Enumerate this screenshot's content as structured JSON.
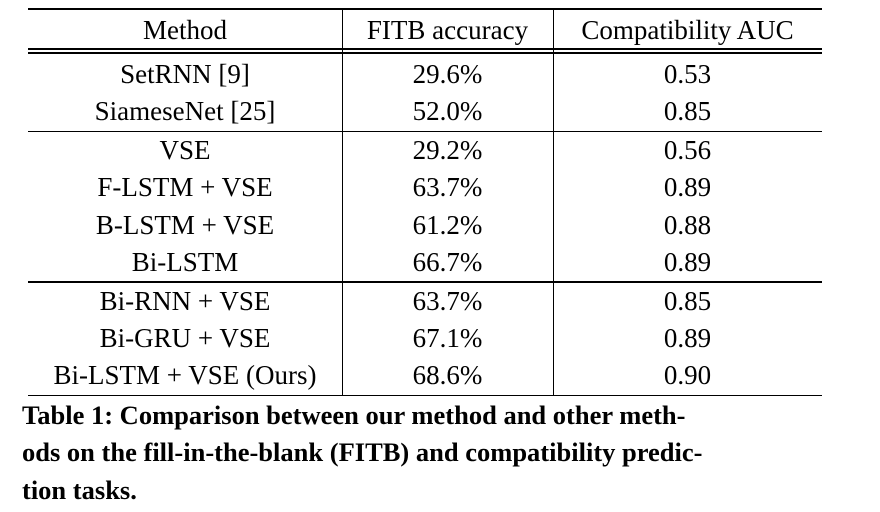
{
  "table": {
    "header": [
      "Method",
      "FITB accuracy",
      "Compatibility AUC"
    ],
    "groups": [
      [
        [
          "SetRNN [9]",
          "29.6%",
          "0.53"
        ],
        [
          "SiameseNet [25]",
          "52.0%",
          "0.85"
        ]
      ],
      [
        [
          "VSE",
          "29.2%",
          "0.56"
        ],
        [
          "F-LSTM + VSE",
          "63.7%",
          "0.89"
        ],
        [
          "B-LSTM + VSE",
          "61.2%",
          "0.88"
        ],
        [
          "Bi-LSTM",
          "66.7%",
          "0.89"
        ]
      ],
      [
        [
          "Bi-RNN + VSE",
          "63.7%",
          "0.85"
        ],
        [
          "Bi-GRU + VSE",
          "67.1%",
          "0.89"
        ],
        [
          "Bi-LSTM + VSE (Ours)",
          "68.6%",
          "0.90"
        ]
      ]
    ]
  },
  "caption": {
    "lines": [
      "Table 1: Comparison between our method and other meth-",
      "ods on the fill-in-the-blank (FITB) and compatibility predic-",
      "tion tasks."
    ]
  }
}
